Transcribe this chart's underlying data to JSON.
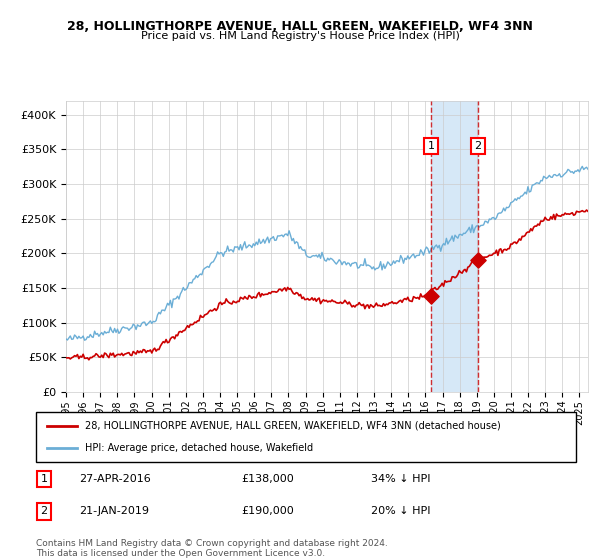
{
  "title": "28, HOLLINGTHORPE AVENUE, HALL GREEN, WAKEFIELD, WF4 3NN",
  "subtitle": "Price paid vs. HM Land Registry's House Price Index (HPI)",
  "legend_line1": "28, HOLLINGTHORPE AVENUE, HALL GREEN, WAKEFIELD, WF4 3NN (detached house)",
  "legend_line2": "HPI: Average price, detached house, Wakefield",
  "transaction1_date": "27-APR-2016",
  "transaction1_price": 138000,
  "transaction1_hpi": "34% ↓ HPI",
  "transaction2_date": "21-JAN-2019",
  "transaction2_price": 190000,
  "transaction2_hpi": "20% ↓ HPI",
  "footnote": "Contains HM Land Registry data © Crown copyright and database right 2024.\nThis data is licensed under the Open Government Licence v3.0.",
  "hpi_color": "#6baed6",
  "price_color": "#cc0000",
  "marker_color": "#cc0000",
  "vline_color": "#cc0000",
  "shade_color": "#d6e8f7",
  "background_color": "#ffffff",
  "grid_color": "#cccccc",
  "ylim": [
    0,
    420000
  ],
  "year_start": 1995,
  "year_end": 2025,
  "transaction1_year": 2016.32,
  "transaction2_year": 2019.05
}
